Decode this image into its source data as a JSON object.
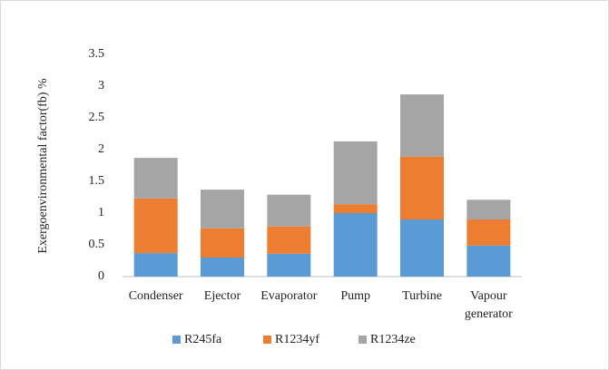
{
  "chart_data": {
    "type": "stacked_bar",
    "y_label": "Exergoenvironmental factor(fb) %",
    "categories": [
      "Condenser",
      "Ejector",
      "Evaporator",
      "Pump",
      "Turbine",
      "Vapour generator"
    ],
    "series": [
      {
        "name": "R245fa",
        "color": "#5b9bd5",
        "values": [
          0.37,
          0.3,
          0.36,
          1.0,
          0.9,
          0.49
        ]
      },
      {
        "name": "R1234yf",
        "color": "#ed7d31",
        "values": [
          0.86,
          0.46,
          0.43,
          0.14,
          0.99,
          0.41
        ]
      },
      {
        "name": "R1234ze",
        "color": "#a5a5a5",
        "values": [
          0.64,
          0.61,
          0.5,
          0.99,
          0.98,
          0.31
        ]
      }
    ],
    "ylim": [
      0,
      3.5
    ],
    "yticks": [
      0,
      0.5,
      1,
      1.5,
      2,
      2.5,
      3,
      3.5
    ],
    "grid": false,
    "legend": "bottom"
  }
}
